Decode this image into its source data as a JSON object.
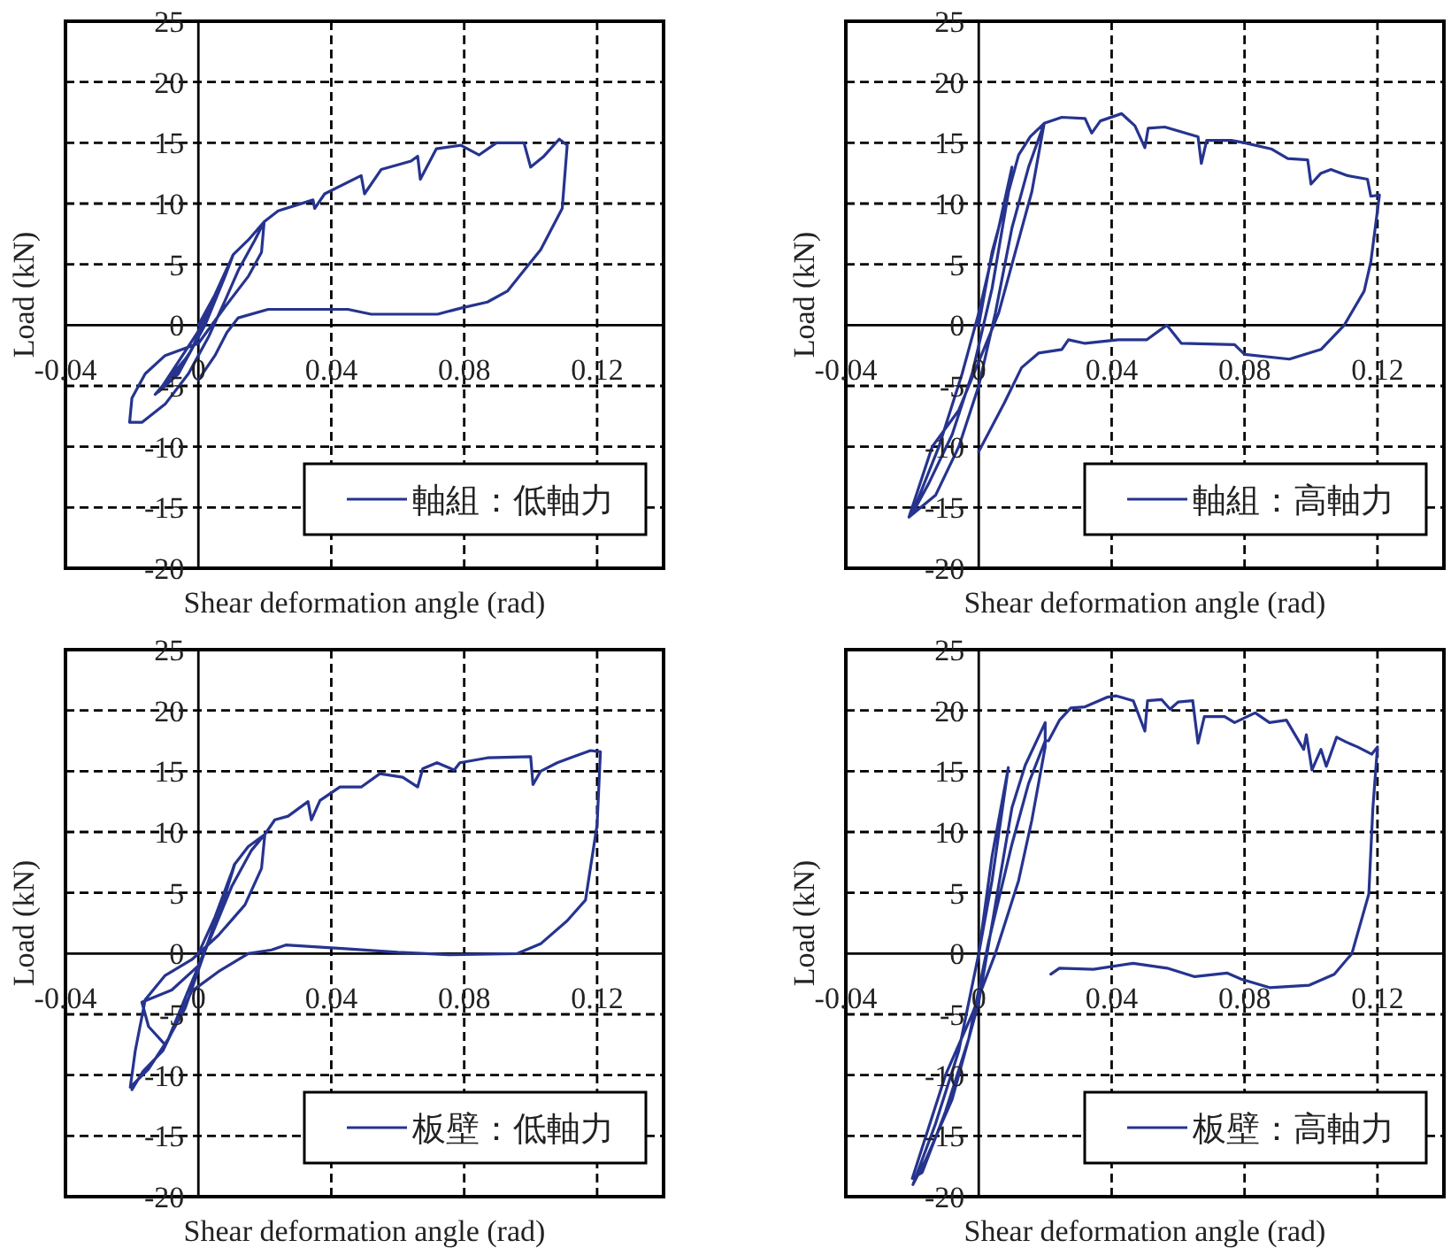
{
  "chart_data": [
    {
      "type": "line",
      "xlabel": "Shear deformation angle (rad)",
      "ylabel": "Load (kN)",
      "xlim": [
        -0.04,
        0.14
      ],
      "ylim": [
        -20,
        25
      ],
      "xticks": [
        -0.04,
        0,
        0.04,
        0.08,
        0.12
      ],
      "yticks": [
        -20,
        -15,
        -10,
        -5,
        0,
        5,
        10,
        15,
        20,
        25
      ],
      "grid": true,
      "legend": "bottom right",
      "series": [
        {
          "name": "軸組：低軸力",
          "color": "#26348f",
          "x": [
            0,
            0.005,
            0.01,
            0.006,
            0,
            -0.006,
            -0.012,
            -0.008,
            -0.002,
            0.003,
            0.0103,
            0.005,
            -0.003,
            -0.013,
            -0.006,
            0.002,
            0.008,
            0.0105,
            0.015,
            0.0198,
            0.019,
            0.015,
            0.008,
            0,
            -0.01,
            -0.016,
            -0.02,
            -0.0207,
            -0.017,
            -0.01,
            -0.003,
            0.003,
            0.008,
            0.012,
            0.017,
            0.0198,
            0.024,
            0.0345,
            0.035,
            0.038,
            0.049,
            0.05,
            0.055,
            0.064,
            0.066,
            0.0668,
            0.0716,
            0.079,
            0.0845,
            0.0897,
            0.098,
            0.1,
            0.104,
            0.1086,
            0.111,
            0.1095,
            0.103,
            0.098,
            0.093,
            0.087,
            0.079,
            0.072,
            0.052,
            0.045,
            0.021,
            0.012,
            0.0086,
            0.005,
            0
          ],
          "values": [
            0,
            2.5,
            5.5,
            3,
            -0.5,
            -3,
            -5.5,
            -4.5,
            -2,
            1,
            5.7,
            2,
            -2.5,
            -5.7,
            -4,
            0,
            4,
            5.8,
            7,
            8.5,
            6,
            4,
            1.5,
            -1.5,
            -2.5,
            -4,
            -6,
            -8,
            -8,
            -6.5,
            -4,
            -1,
            2,
            4.5,
            7,
            8.5,
            9.4,
            10.3,
            9.6,
            10.8,
            12.3,
            10.8,
            12.8,
            13.5,
            13.9,
            12,
            14.5,
            14.8,
            14,
            15,
            15,
            13,
            13.9,
            15.3,
            14.8,
            9.6,
            6.2,
            4.5,
            2.8,
            1.9,
            1.4,
            0.9,
            0.9,
            1.3,
            1.3,
            0.6,
            -0.6,
            -2.5,
            -4.5
          ]
        }
      ]
    },
    {
      "type": "line",
      "xlabel": "Shear deformation angle (rad)",
      "ylabel": "Load (kN)",
      "xlim": [
        -0.04,
        0.14
      ],
      "ylim": [
        -20,
        25
      ],
      "xticks": [
        -0.04,
        0,
        0.04,
        0.08,
        0.12
      ],
      "yticks": [
        -20,
        -15,
        -10,
        -5,
        0,
        5,
        10,
        15,
        20,
        25
      ],
      "grid": true,
      "legend": "bottom right",
      "series": [
        {
          "name": "軸組：高軸力",
          "color": "#26348f",
          "x": [
            0,
            0.004,
            0.008,
            0.01,
            0.006,
            0,
            -0.005,
            -0.012,
            -0.02,
            -0.015,
            -0.008,
            -0.002,
            0.004,
            0.009,
            0.012,
            0.0155,
            0.0197,
            0.016,
            0.011,
            0.006,
            0,
            -0.006,
            -0.014,
            -0.021,
            -0.013,
            -0.006,
            0,
            0.005,
            0.01,
            0.015,
            0.0197,
            0.025,
            0.032,
            0.034,
            0.0366,
            0.043,
            0.047,
            0.05,
            0.051,
            0.056,
            0.061,
            0.066,
            0.067,
            0.0686,
            0.076,
            0.08,
            0.088,
            0.093,
            0.099,
            0.1,
            0.103,
            0.106,
            0.111,
            0.117,
            0.118,
            0.1206,
            0.118,
            0.116,
            0.11,
            0.103,
            0.0935,
            0.08,
            0.077,
            0.061,
            0.0566,
            0.0506,
            0.042,
            0.032,
            0.027,
            0.025,
            0.018,
            0.0129,
            0.0077,
            0
          ],
          "values": [
            0,
            6,
            10,
            13,
            8,
            1,
            -4,
            -10,
            -15.5,
            -13,
            -9,
            -4,
            3,
            11,
            14,
            15.5,
            16.6,
            11,
            6,
            1,
            -3,
            -7,
            -10,
            -15.8,
            -14,
            -10,
            -5,
            1,
            8,
            13,
            16.6,
            17.1,
            17,
            15.8,
            16.8,
            17.4,
            16.4,
            14.6,
            16.2,
            16.3,
            15.9,
            15.5,
            13.3,
            15.2,
            15.2,
            15,
            14.5,
            13.7,
            13.6,
            11.6,
            12.5,
            12.8,
            12.3,
            12,
            10.6,
            10.7,
            5.2,
            2.8,
            0,
            -2,
            -2.8,
            -2.4,
            -1.6,
            -1.5,
            0,
            -1.2,
            -1.2,
            -1.5,
            -1.2,
            -2,
            -2.3,
            -3.5,
            -6.4,
            -10.4
          ]
        }
      ]
    },
    {
      "type": "line",
      "xlabel": "Shear deformation angle (rad)",
      "ylabel": "Load (kN)",
      "xlim": [
        -0.04,
        0.14
      ],
      "ylim": [
        -20,
        25
      ],
      "xticks": [
        -0.04,
        0,
        0.04,
        0.08,
        0.12
      ],
      "yticks": [
        -20,
        -15,
        -10,
        -5,
        0,
        5,
        10,
        15,
        20,
        25
      ],
      "grid": true,
      "legend": "bottom right",
      "series": [
        {
          "name": "板壁：低軸力",
          "color": "#26348f",
          "x": [
            0,
            0.005,
            0.011,
            0.006,
            0,
            -0.008,
            -0.017,
            -0.015,
            -0.01,
            -0.004,
            0.003,
            0.008,
            0.0108,
            0.015,
            0.02,
            0.019,
            0.014,
            0.006,
            -0.002,
            -0.01,
            -0.016,
            -0.019,
            -0.0205,
            -0.015,
            -0.009,
            -0.003,
            0.004,
            0.01,
            0.016,
            0.02,
            0.023,
            0.027,
            0.033,
            0.034,
            0.0366,
            0.0426,
            0.049,
            0.0546,
            0.0615,
            0.066,
            0.0675,
            0.0718,
            0.077,
            0.0787,
            0.087,
            0.1,
            0.1007,
            0.103,
            0.108,
            0.113,
            0.118,
            0.121,
            0.12,
            0.1165,
            0.111,
            0.103,
            0.096,
            0.0753,
            0.06,
            0.0443,
            0.0263,
            0.022,
            0.015,
            0.0065,
            -0.002,
            -0.0107,
            -0.0167,
            -0.02
          ],
          "values": [
            0,
            3,
            7.4,
            3,
            -1,
            -3,
            -4,
            -6,
            -7.5,
            -4.5,
            1,
            5,
            7.3,
            8.8,
            9.8,
            7,
            4,
            1.5,
            -0.5,
            -1.8,
            -3.8,
            -8,
            -11,
            -9.5,
            -7,
            -3,
            1.5,
            5.5,
            8.5,
            9.8,
            11,
            11.3,
            12.5,
            11,
            12.6,
            13.7,
            13.7,
            14.8,
            14.5,
            13.7,
            15.2,
            15.7,
            15.1,
            15.7,
            16.1,
            16.2,
            13.9,
            15,
            15.7,
            16.2,
            16.7,
            16.6,
            10.6,
            4.4,
            2.7,
            0.8,
            0,
            -0.1,
            0.1,
            0.4,
            0.7,
            0.3,
            0,
            -1.4,
            -3.1,
            -8,
            -9.7,
            -11.2
          ]
        }
      ]
    },
    {
      "type": "line",
      "xlabel": "Shear deformation angle (rad)",
      "ylabel": "Load (kN)",
      "xlim": [
        -0.04,
        0.14
      ],
      "ylim": [
        -20,
        25
      ],
      "xticks": [
        -0.04,
        0,
        0.04,
        0.08,
        0.12
      ],
      "yticks": [
        -20,
        -15,
        -10,
        -5,
        0,
        5,
        10,
        15,
        20,
        25
      ],
      "grid": true,
      "legend": "bottom right",
      "series": [
        {
          "name": "板壁：高軸力",
          "color": "#26348f",
          "x": [
            0,
            0.004,
            0.0089,
            0.004,
            0,
            -0.006,
            -0.013,
            -0.0198,
            -0.016,
            -0.008,
            0,
            0.005,
            0.01,
            0.014,
            0.02,
            0.02,
            0.016,
            0.012,
            0.005,
            -0.002,
            -0.01,
            -0.02,
            -0.017,
            -0.01,
            -0.003,
            0.003,
            0.01,
            0.015,
            0.02,
            0.021,
            0.0243,
            0.0277,
            0.032,
            0.0388,
            0.0414,
            0.0465,
            0.05,
            0.0508,
            0.055,
            0.0576,
            0.06,
            0.0644,
            0.066,
            0.0679,
            0.074,
            0.077,
            0.0832,
            0.0875,
            0.0926,
            0.0978,
            0.0986,
            0.1003,
            0.103,
            0.1046,
            0.1077,
            0.1106,
            0.114,
            0.1183,
            0.12,
            0.1186,
            0.1174,
            0.1123,
            0.107,
            0.0995,
            0.0875,
            0.079,
            0.0747,
            0.065,
            0.0567,
            0.0465,
            0.0345,
            0.0243,
            0.0217
          ],
          "values": [
            0,
            6,
            15.3,
            8,
            0,
            -8,
            -14,
            -19,
            -17,
            -12,
            -4,
            4,
            12,
            15.5,
            19,
            17,
            11,
            6,
            0,
            -5,
            -10,
            -18.5,
            -18,
            -13,
            -7,
            1,
            9,
            14,
            17.5,
            17.5,
            19.2,
            20.2,
            20.3,
            21.1,
            21.2,
            20.8,
            18.3,
            20.8,
            20.9,
            20.1,
            20.7,
            20.8,
            17.3,
            19.5,
            19.5,
            19,
            19.8,
            19,
            19.2,
            16.8,
            18,
            15.1,
            16.8,
            15.4,
            17.8,
            17.4,
            17,
            16.4,
            17,
            11.9,
            4.9,
            0,
            -1.7,
            -2.6,
            -2.8,
            -2.1,
            -1.6,
            -1.9,
            -1.2,
            -0.8,
            -1.3,
            -1.2,
            -1.7
          ]
        }
      ]
    }
  ]
}
